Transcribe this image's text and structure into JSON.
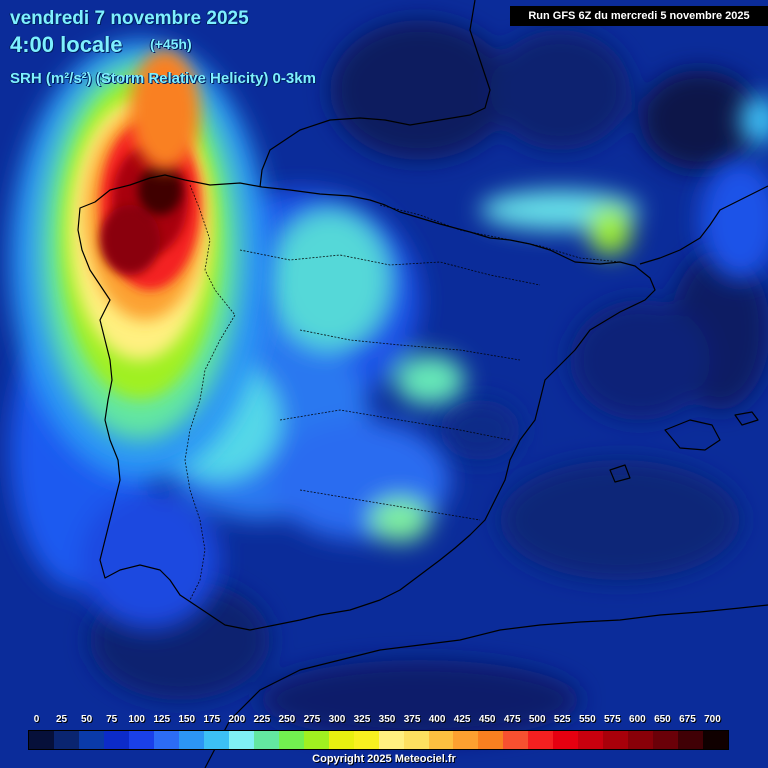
{
  "header": {
    "date": "vendredi 7 novembre 2025",
    "time": "4:00 locale",
    "lead": "(+45h)",
    "parameter": "SRH (m²/s²) (Storm Relative Helicity) 0-3km",
    "run": "Run GFS 6Z du mercredi 5 novembre 2025"
  },
  "legend": {
    "labels": [
      "0",
      "25",
      "50",
      "75",
      "100",
      "125",
      "150",
      "175",
      "200",
      "225",
      "250",
      "275",
      "300",
      "325",
      "350",
      "375",
      "400",
      "425",
      "450",
      "475",
      "500",
      "525",
      "550",
      "575",
      "600",
      "650",
      "675",
      "700"
    ],
    "colors": [
      "#06103a",
      "#0a2570",
      "#0a3aa8",
      "#0c2bc9",
      "#1a40e8",
      "#2c6cf5",
      "#2c95f5",
      "#3cc0f5",
      "#7ff0f5",
      "#63e7a0",
      "#72f050",
      "#a0f020",
      "#e8f010",
      "#f8f020",
      "#fff080",
      "#fde060",
      "#fdc040",
      "#fca030",
      "#f98020",
      "#f75030",
      "#f42020",
      "#e60010",
      "#c8000e",
      "#a8000a",
      "#880008",
      "#6a0008",
      "#400005",
      "#100000"
    ],
    "copyright": "Copyright 2025 Meteociel.fr"
  },
  "map": {
    "hotspot_color": "#8a0010",
    "background_color": "#0a2a8a"
  }
}
